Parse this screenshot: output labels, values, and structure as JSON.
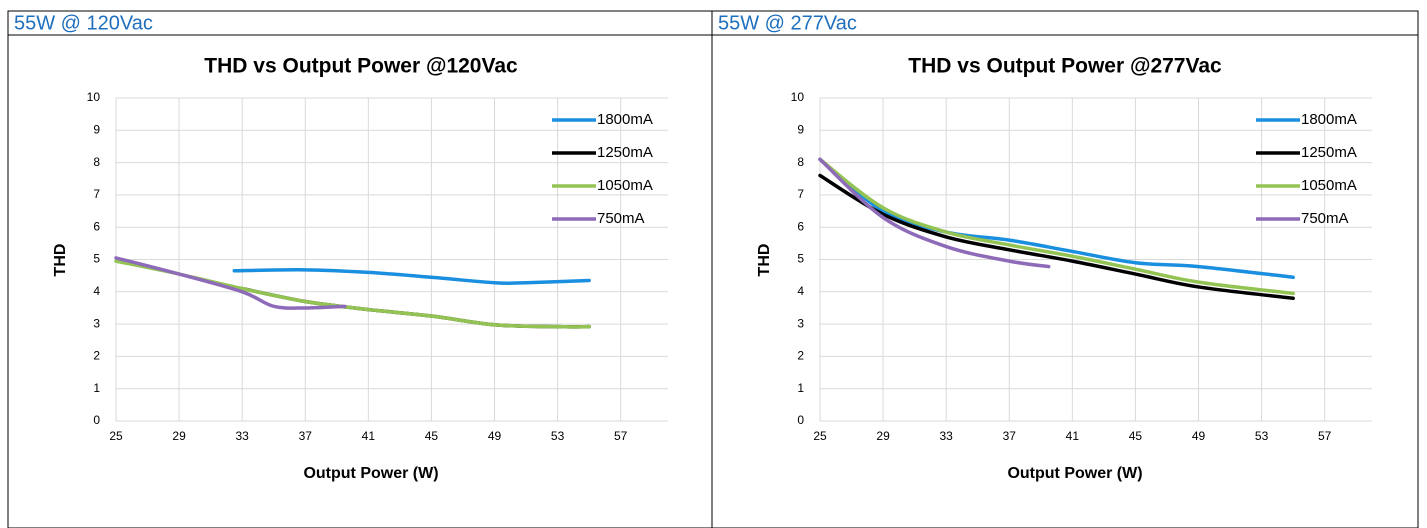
{
  "table": {
    "headers": [
      "55W @ 120Vac",
      "55W @ 277Vac"
    ]
  },
  "chart_data": [
    {
      "type": "line",
      "title": "THD vs Output Power @120Vac",
      "xlabel": "Output Power (W)",
      "ylabel": "THD",
      "xlim": [
        25,
        60
      ],
      "xticks": [
        25,
        29,
        33,
        37,
        41,
        45,
        49,
        53,
        57
      ],
      "ylim": [
        0,
        10
      ],
      "yticks": [
        0,
        1,
        2,
        3,
        4,
        5,
        6,
        7,
        8,
        9,
        10
      ],
      "grid": true,
      "legend": "top-right",
      "series": [
        {
          "name": "1800mA",
          "color": "#1a8fe0",
          "x": [
            32.5,
            37,
            41,
            45,
            49,
            51,
            55
          ],
          "values": [
            4.65,
            4.68,
            4.6,
            4.45,
            4.28,
            4.28,
            4.35
          ]
        },
        {
          "name": "1250mA",
          "color": "#000000",
          "x": [
            33,
            37,
            41,
            45,
            49,
            53,
            55
          ],
          "values": [
            4.1,
            3.7,
            3.45,
            3.25,
            2.98,
            2.92,
            2.92
          ]
        },
        {
          "name": "1050mA",
          "color": "#92c353",
          "x": [
            25,
            29,
            33,
            37,
            41,
            45,
            49,
            53,
            55
          ],
          "values": [
            4.95,
            4.55,
            4.1,
            3.7,
            3.45,
            3.25,
            2.98,
            2.92,
            2.92
          ]
        },
        {
          "name": "750mA",
          "color": "#8e6bb8",
          "x": [
            25,
            29,
            33,
            35,
            37,
            39.5
          ],
          "values": [
            5.05,
            4.55,
            4.0,
            3.55,
            3.5,
            3.55
          ]
        }
      ]
    },
    {
      "type": "line",
      "title": "THD vs Output Power @277Vac",
      "xlabel": "Output Power (W)",
      "ylabel": "THD",
      "xlim": [
        25,
        60
      ],
      "xticks": [
        25,
        29,
        33,
        37,
        41,
        45,
        49,
        53,
        57
      ],
      "ylim": [
        0,
        10
      ],
      "yticks": [
        0,
        1,
        2,
        3,
        4,
        5,
        6,
        7,
        8,
        9,
        10
      ],
      "grid": true,
      "legend": "top-right",
      "series": [
        {
          "name": "1800mA",
          "color": "#1a8fe0",
          "x": [
            25,
            29,
            33,
            37,
            41,
            45,
            49,
            55
          ],
          "values": [
            8.1,
            6.5,
            5.85,
            5.6,
            5.25,
            4.9,
            4.78,
            4.45
          ]
        },
        {
          "name": "1250mA",
          "color": "#000000",
          "x": [
            25,
            29,
            33,
            37,
            41,
            45,
            49,
            55
          ],
          "values": [
            7.6,
            6.4,
            5.7,
            5.3,
            4.95,
            4.55,
            4.15,
            3.8
          ]
        },
        {
          "name": "1050mA",
          "color": "#92c353",
          "x": [
            25,
            29,
            33,
            37,
            41,
            45,
            49,
            55
          ],
          "values": [
            8.1,
            6.6,
            5.85,
            5.45,
            5.1,
            4.7,
            4.3,
            3.95
          ]
        },
        {
          "name": "750mA",
          "color": "#8e6bb8",
          "x": [
            25,
            29,
            33,
            37,
            39.5
          ],
          "values": [
            8.1,
            6.3,
            5.4,
            4.95,
            4.78
          ]
        }
      ]
    }
  ]
}
